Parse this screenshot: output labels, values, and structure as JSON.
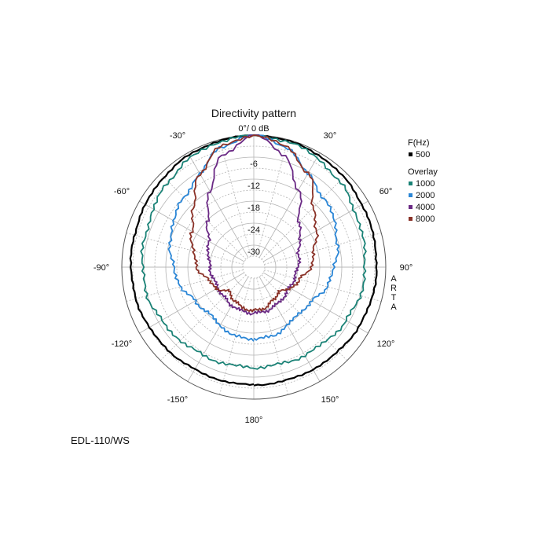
{
  "colors": {
    "background": "#ffffff",
    "grid": "#b4b4b4",
    "outline": "#555555",
    "text": "#111111"
  },
  "model_label": "EDL-110/WS",
  "chart_data": {
    "type": "polar",
    "title": "Directivity pattern",
    "top_label": "0°/ 0 dB",
    "watermark": "ARTA",
    "radial_range_db": [
      -36,
      0
    ],
    "radial_ticks": [
      {
        "value": -6,
        "label": "-6"
      },
      {
        "value": -12,
        "label": "-12"
      },
      {
        "value": -18,
        "label": "-18"
      },
      {
        "value": -24,
        "label": "-24"
      },
      {
        "value": -30,
        "label": "-30"
      }
    ],
    "angle_labels": [
      {
        "angle": -30,
        "label": "-30°"
      },
      {
        "angle": 30,
        "label": "30°"
      },
      {
        "angle": -60,
        "label": "-60°"
      },
      {
        "angle": 60,
        "label": "60°"
      },
      {
        "angle": -90,
        "label": "-90°"
      },
      {
        "angle": 90,
        "label": "90°"
      },
      {
        "angle": -120,
        "label": "-120°"
      },
      {
        "angle": 120,
        "label": "120°"
      },
      {
        "angle": -150,
        "label": "-150°"
      },
      {
        "angle": 150,
        "label": "150°"
      },
      {
        "angle": 180,
        "label": "180°"
      }
    ],
    "legend": {
      "header": "F(Hz)",
      "overlay_header": "Overlay",
      "position": "top-right"
    },
    "angles": [
      0,
      15,
      30,
      45,
      60,
      75,
      90,
      105,
      120,
      135,
      150,
      165,
      180
    ],
    "series": [
      {
        "name": "500",
        "role": "main",
        "color": "#000000",
        "values_db": [
          0,
          -0.3,
          -0.7,
          -1.3,
          -1.9,
          -2.3,
          -2.5,
          -2.7,
          -3.1,
          -3.5,
          -3.8,
          -3.9,
          -3.9
        ]
      },
      {
        "name": "1000",
        "role": "overlay",
        "color": "#1a8276",
        "values_db": [
          0,
          -0.5,
          -1.6,
          -3.0,
          -4.4,
          -5.3,
          -5.6,
          -6.0,
          -6.9,
          -7.8,
          -8.3,
          -8.6,
          -8.6
        ]
      },
      {
        "name": "2000",
        "role": "overlay",
        "color": "#2b86d6",
        "values_db": [
          0,
          -2.0,
          -6.7,
          -9.2,
          -10.6,
          -12.5,
          -14.0,
          -15.5,
          -17.5,
          -18.5,
          -17.7,
          -16.5,
          -16.4
        ]
      },
      {
        "name": "4000",
        "role": "overlay",
        "color": "#6b2a85",
        "values_db": [
          0,
          -4.3,
          -12.0,
          -18.5,
          -21.7,
          -23.3,
          -24.0,
          -24.5,
          -24.8,
          -24.5,
          -24.0,
          -23.6,
          -23.4
        ]
      },
      {
        "name": "8000",
        "role": "overlay",
        "color": "#8a3228",
        "values_db": [
          0,
          -2.0,
          -6.5,
          -13.0,
          -16.5,
          -19.0,
          -20.5,
          -23.0,
          -24.5,
          -26.5,
          -25.5,
          -24.5,
          -24.2
        ]
      }
    ]
  }
}
